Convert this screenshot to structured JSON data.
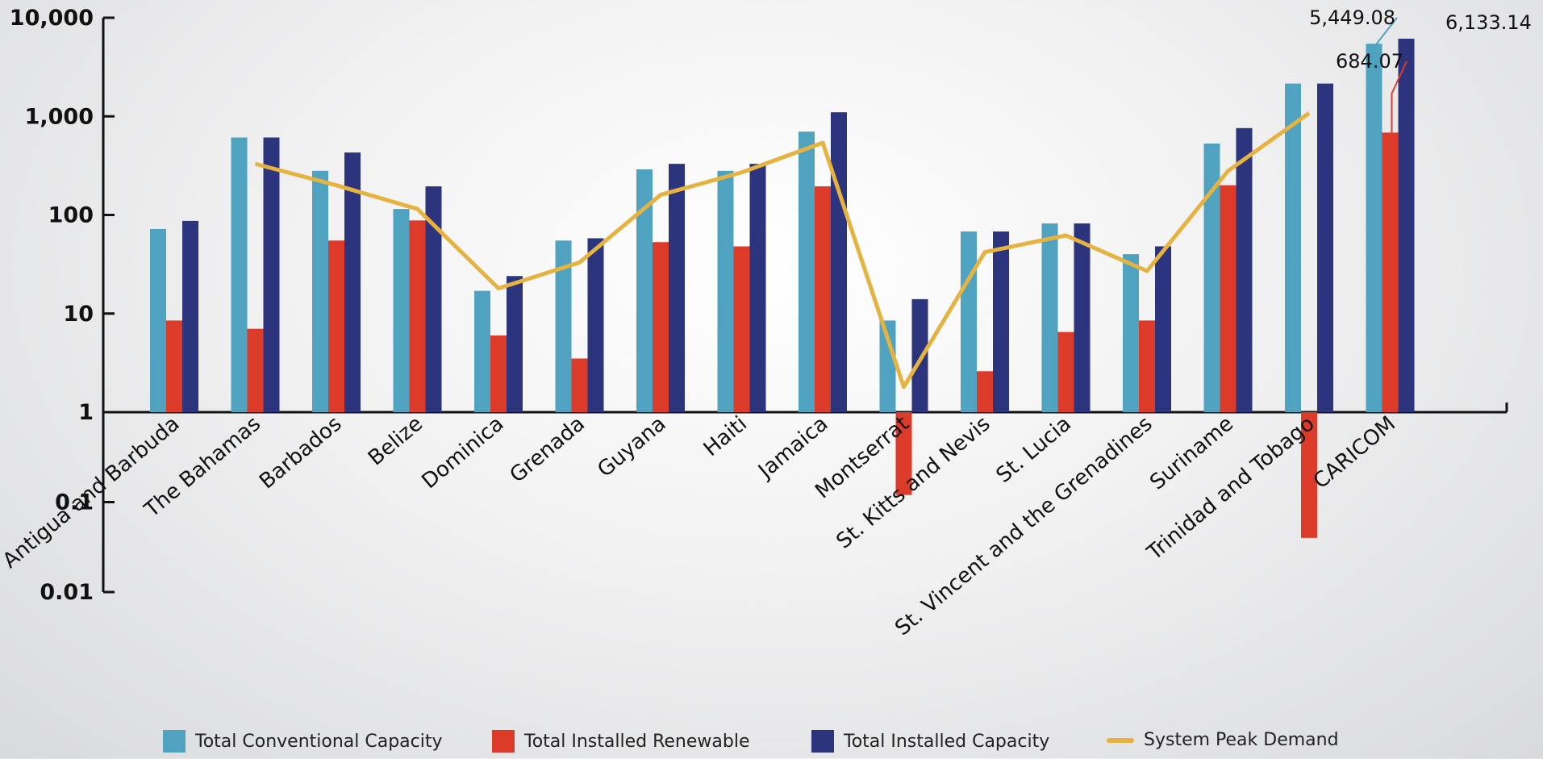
{
  "chart_data": {
    "type": "bar",
    "y_scale": "log",
    "ylim": [
      0.01,
      10000
    ],
    "y_ticks": [
      "10,000",
      "1,000",
      "100",
      "10",
      "1",
      "0.1",
      "0.01"
    ],
    "y_tick_values": [
      10000,
      1000,
      100,
      10,
      1,
      0.1,
      0.01
    ],
    "grid": false,
    "legend_position": "bottom",
    "categories": [
      "Antigua and Barbuda",
      "The Bahamas",
      "Barbados",
      "Belize",
      "Dominica",
      "Grenada",
      "Guyana",
      "Haiti",
      "Jamaica",
      "Montserrat",
      "St. Kitts and Nevis",
      "St. Lucia",
      "St. Vincent and the Grenadines",
      "Suriname",
      "Trinidad and Tobago",
      "CARICOM"
    ],
    "series": [
      {
        "name": "Total Conventional Capacity",
        "kind": "bar",
        "color": "#4fa3c0",
        "values": [
          72,
          610,
          280,
          115,
          17,
          55,
          290,
          280,
          700,
          8.5,
          68,
          82,
          40,
          530,
          2150,
          5449.08
        ]
      },
      {
        "name": "Total Installed Renewable",
        "kind": "bar",
        "color": "#dc3b2a",
        "values": [
          8.5,
          7,
          55,
          88,
          6,
          3.5,
          53,
          48,
          195,
          0.12,
          2.6,
          6.5,
          8.5,
          200,
          0.04,
          684.07
        ]
      },
      {
        "name": "Total Installed Capacity",
        "kind": "bar",
        "color": "#2b347d",
        "values": [
          87,
          610,
          430,
          195,
          24,
          58,
          330,
          330,
          1100,
          14,
          68,
          82,
          48,
          760,
          2150,
          6133.14
        ]
      },
      {
        "name": "System Peak Demand",
        "kind": "line",
        "color": "#e6b341",
        "values": [
          null,
          330,
          200,
          115,
          18,
          33,
          160,
          270,
          540,
          1.8,
          42,
          62,
          27,
          280,
          1080,
          null
        ]
      }
    ],
    "annotations": [
      {
        "text": "5,449.08",
        "series": 0,
        "category": 15
      },
      {
        "text": "684.07",
        "series": 1,
        "category": 15
      },
      {
        "text": "6,133.14",
        "series": 2,
        "category": 15
      }
    ]
  },
  "legend": [
    {
      "label": "Total Conventional Capacity",
      "color": "#4fa3c0",
      "kind": "bar"
    },
    {
      "label": "Total Installed Renewable",
      "color": "#dc3b2a",
      "kind": "bar"
    },
    {
      "label": "Total Installed Capacity",
      "color": "#2b347d",
      "kind": "bar"
    },
    {
      "label": "System Peak Demand",
      "color": "#e6b341",
      "kind": "line"
    }
  ]
}
